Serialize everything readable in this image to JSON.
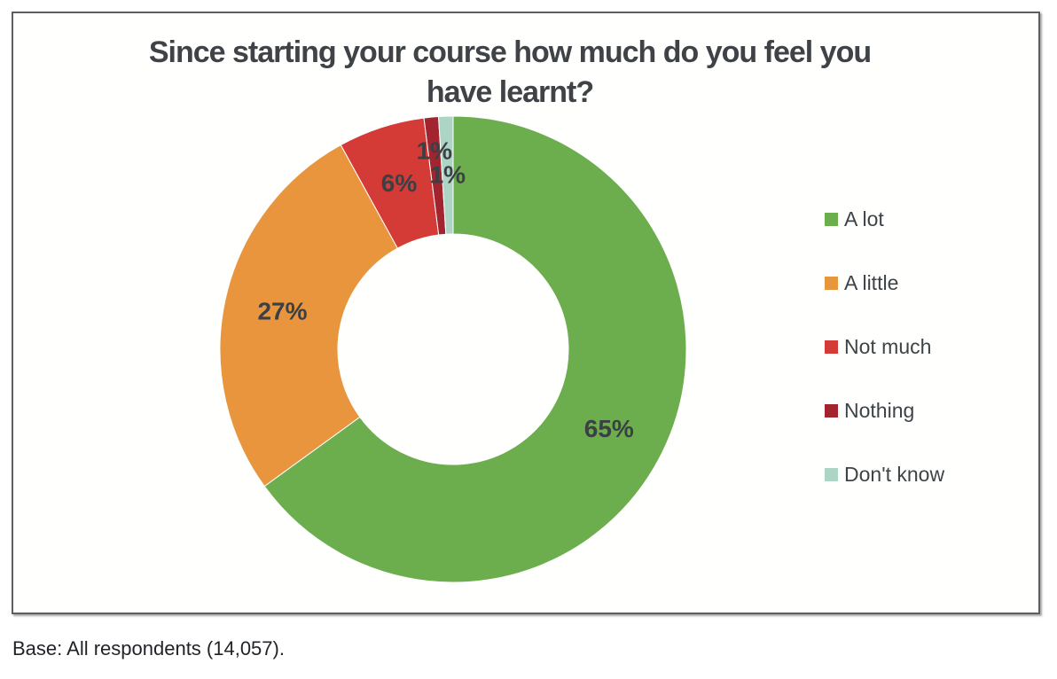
{
  "chart": {
    "title_line1": "Since starting your course how much do you feel you",
    "title_line2": "have learnt?",
    "base_note": "Base: All respondents (14,057)."
  },
  "chart_data": {
    "type": "pie",
    "subtype": "donut",
    "title": "Since starting your course how much do you feel you have learnt?",
    "categories": [
      "A lot",
      "A little",
      "Not much",
      "Nothing",
      "Don't know"
    ],
    "values": [
      65,
      27,
      6,
      1,
      1
    ],
    "labels": [
      "65%",
      "27%",
      "6%",
      "1%",
      "1%"
    ],
    "colors": [
      "#6cae4e",
      "#e9953e",
      "#d43a36",
      "#a2242e",
      "#acd5c6"
    ],
    "unit": "percent",
    "start_angle_deg": 0,
    "direction": "clockwise",
    "inner_radius_ratio": 0.494,
    "legend_position": "right",
    "base_note": "Base: All respondents (14,057)."
  },
  "style": {
    "label_color": "#3b4045",
    "title_color": "#3f4347",
    "legend_text_color": "#3e4347",
    "box_border_color": "#5e5e5e",
    "slice_separator_color": "#ffffff"
  }
}
